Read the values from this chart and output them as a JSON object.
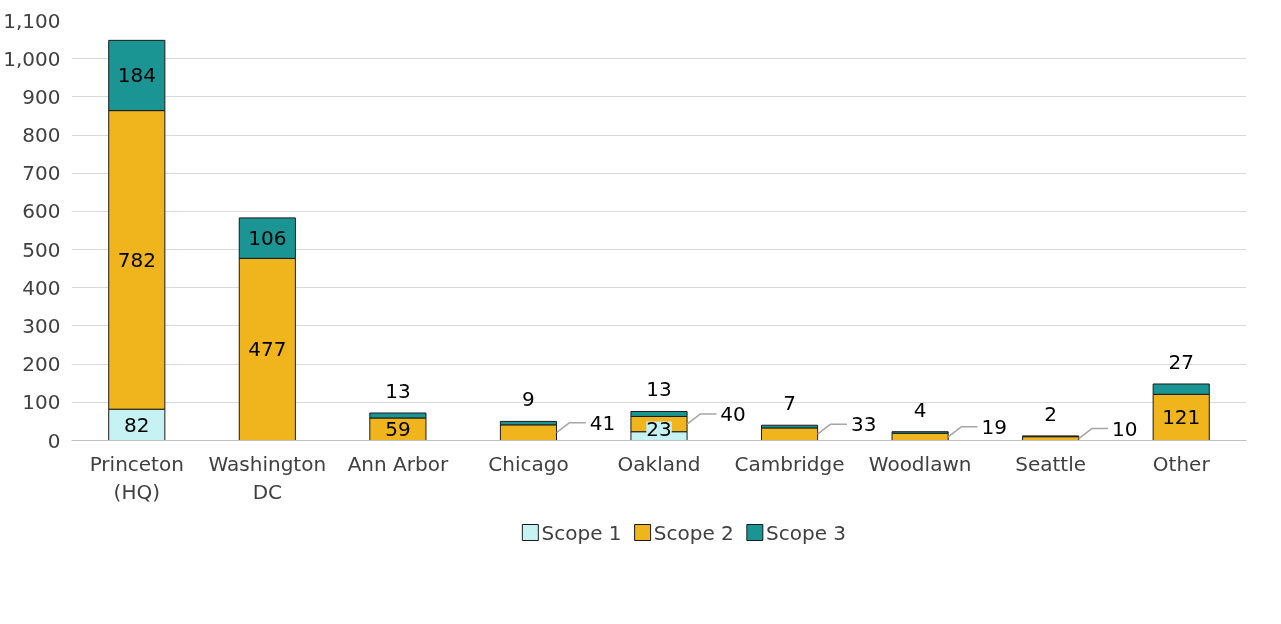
{
  "chart_data": {
    "type": "bar",
    "stacked": true,
    "categories": [
      "Princeton\n(HQ)",
      "Washington\nDC",
      "Ann Arbor",
      "Chicago",
      "Oakland",
      "Cambridge",
      "Woodlawn",
      "Seattle",
      "Other"
    ],
    "series": [
      {
        "name": "Scope 1",
        "color": "#c6f2f4",
        "values": [
          82,
          0,
          0,
          0,
          23,
          0,
          0,
          0,
          0
        ],
        "value_labels": [
          "82",
          null,
          null,
          null,
          "23",
          null,
          null,
          null,
          null
        ]
      },
      {
        "name": "Scope 2",
        "color": "#f0b41c",
        "values": [
          782,
          477,
          59,
          41,
          40,
          33,
          19,
          10,
          121
        ],
        "value_labels": [
          "782",
          "477",
          "59",
          "41",
          "40",
          "33",
          "19",
          "10",
          "121"
        ]
      },
      {
        "name": "Scope 3",
        "color": "#1a9593",
        "values": [
          184,
          106,
          13,
          9,
          13,
          7,
          4,
          2,
          27
        ],
        "value_labels": [
          "184",
          "106",
          "13",
          "9",
          "13",
          "7",
          "4",
          "2",
          "27"
        ]
      }
    ],
    "ylim": [
      0,
      1100
    ],
    "yticks": [
      0,
      100,
      200,
      300,
      400,
      500,
      600,
      700,
      800,
      900,
      {
        "value": 1000,
        "label": "1,000"
      },
      {
        "value": 1100,
        "label": "1,100"
      }
    ],
    "grid": "y",
    "legend": "bottom"
  }
}
